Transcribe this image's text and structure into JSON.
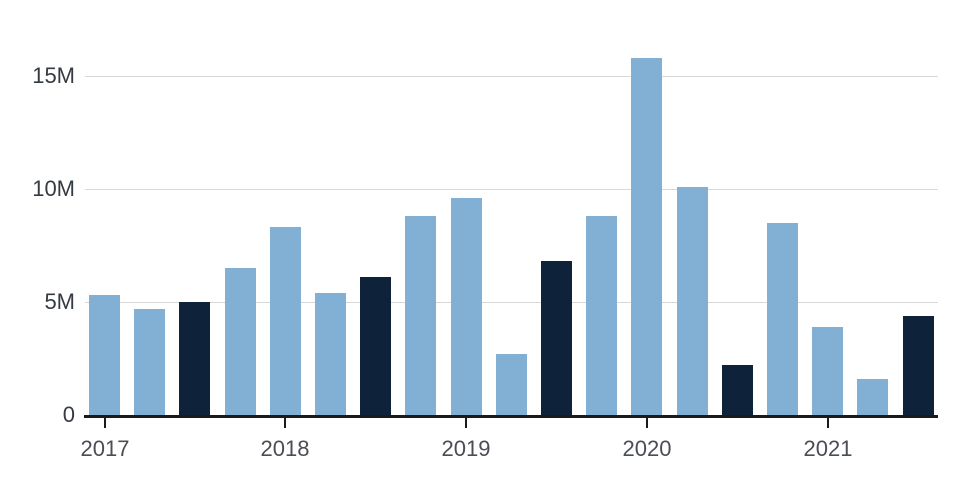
{
  "chart_data": {
    "type": "bar",
    "title": "",
    "xlabel": "",
    "ylabel": "",
    "unit": "M",
    "ylim": [
      0,
      18.4
    ],
    "grid": "horizontal",
    "legend": "none",
    "colors": {
      "bar_default": "#82b0d5",
      "bar_highlight": "#0e2239",
      "gridline": "#d8d8d8",
      "axis": "#1a1a1a",
      "y_label_color": "#353b43",
      "x_label_color": "#4a4e54"
    },
    "y_ticks": [
      {
        "label": "0",
        "value": 0
      },
      {
        "label": "5M",
        "value": 5
      },
      {
        "label": "10M",
        "value": 10
      },
      {
        "label": "15M",
        "value": 15
      }
    ],
    "x_ticks": [
      {
        "label": "2017",
        "bar_index": 0
      },
      {
        "label": "2018",
        "bar_index": 4
      },
      {
        "label": "2019",
        "bar_index": 8
      },
      {
        "label": "2020",
        "bar_index": 12
      },
      {
        "label": "2021",
        "bar_index": 16
      }
    ],
    "bars": [
      {
        "value": 5.3,
        "highlight": false
      },
      {
        "value": 4.7,
        "highlight": false
      },
      {
        "value": 5.0,
        "highlight": true
      },
      {
        "value": 6.5,
        "highlight": false
      },
      {
        "value": 8.3,
        "highlight": false
      },
      {
        "value": 5.4,
        "highlight": false
      },
      {
        "value": 6.1,
        "highlight": true
      },
      {
        "value": 8.8,
        "highlight": false
      },
      {
        "value": 9.6,
        "highlight": false
      },
      {
        "value": 2.7,
        "highlight": false
      },
      {
        "value": 6.8,
        "highlight": true
      },
      {
        "value": 8.8,
        "highlight": false
      },
      {
        "value": 15.8,
        "highlight": false
      },
      {
        "value": 10.1,
        "highlight": false
      },
      {
        "value": 2.2,
        "highlight": true
      },
      {
        "value": 8.5,
        "highlight": false
      },
      {
        "value": 3.9,
        "highlight": false
      },
      {
        "value": 1.6,
        "highlight": false
      },
      {
        "value": 4.4,
        "highlight": true
      }
    ]
  }
}
